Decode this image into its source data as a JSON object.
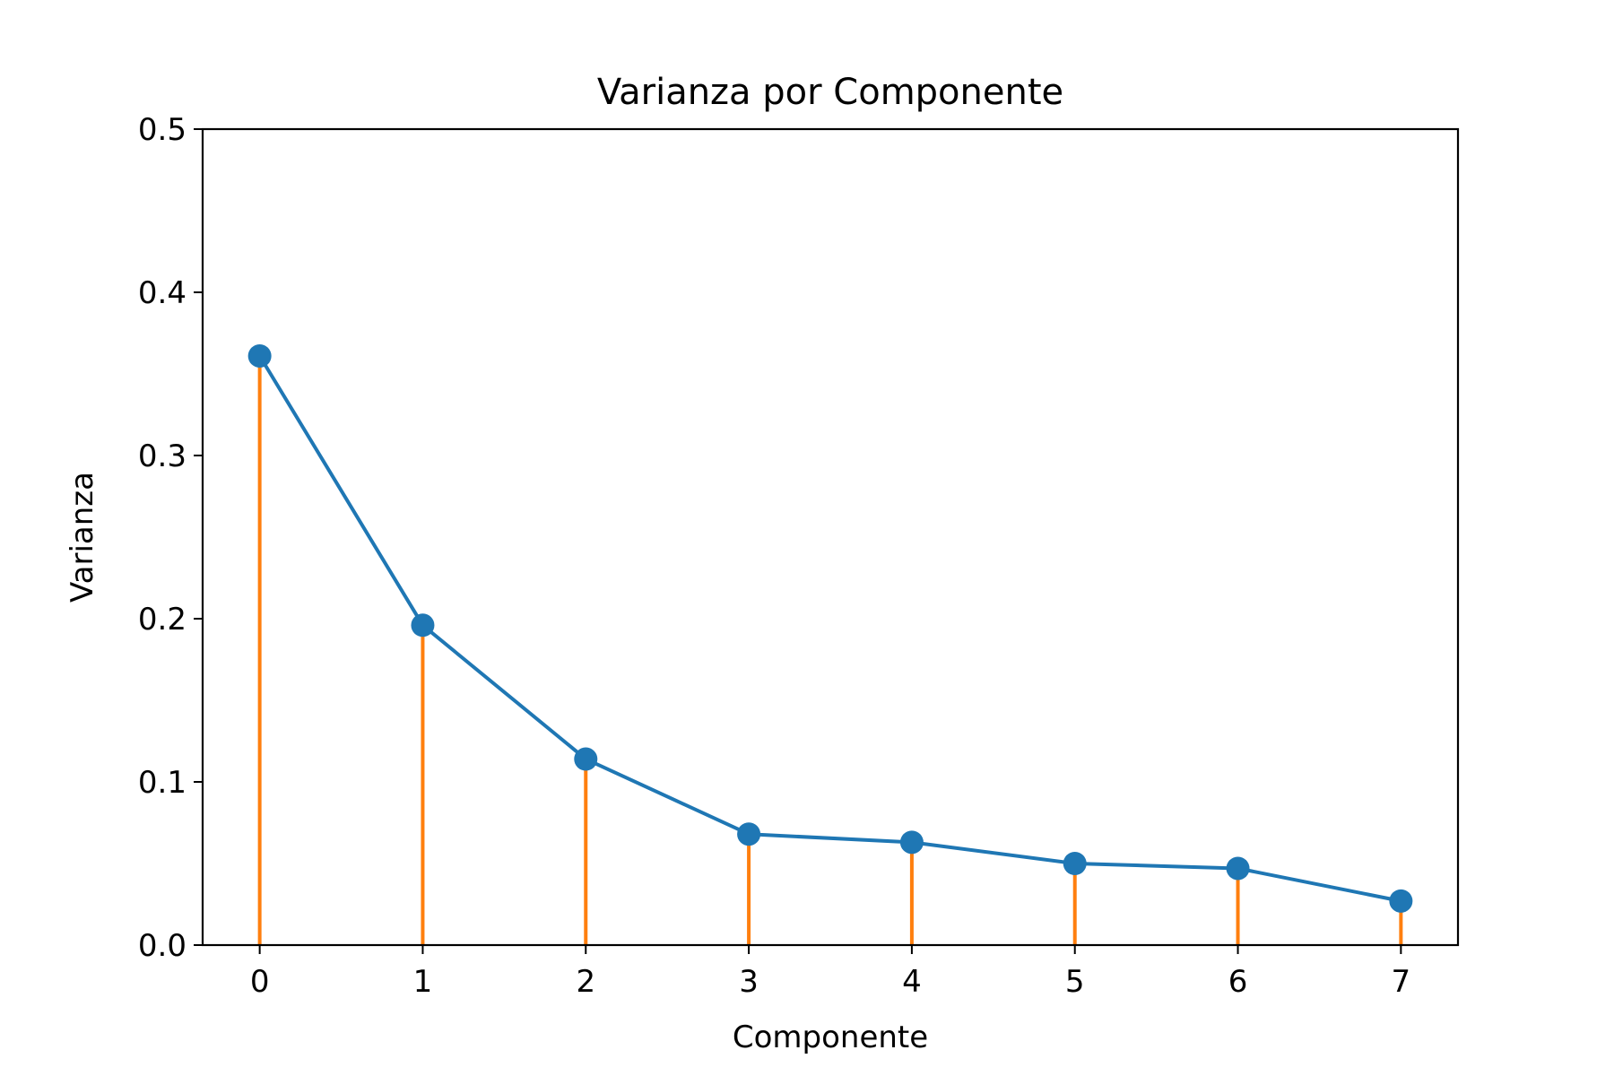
{
  "chart_data": {
    "type": "line",
    "title": "Varianza por Componente",
    "xlabel": "Componente",
    "ylabel": "Varianza",
    "x": [
      0,
      1,
      2,
      3,
      4,
      5,
      6,
      7
    ],
    "series": [
      {
        "values": [
          0.361,
          0.196,
          0.114,
          0.068,
          0.063,
          0.05,
          0.047,
          0.027
        ],
        "color": "#1f77b4",
        "stems_color": "#ff7f0e"
      }
    ],
    "xlim": [
      -0.35,
      7.35
    ],
    "ylim": [
      0.0,
      0.5
    ],
    "xticks": [
      "0",
      "1",
      "2",
      "3",
      "4",
      "5",
      "6",
      "7"
    ],
    "yticks": [
      "0.0",
      "0.1",
      "0.2",
      "0.3",
      "0.4",
      "0.5"
    ],
    "grid": false,
    "legend": "none"
  }
}
